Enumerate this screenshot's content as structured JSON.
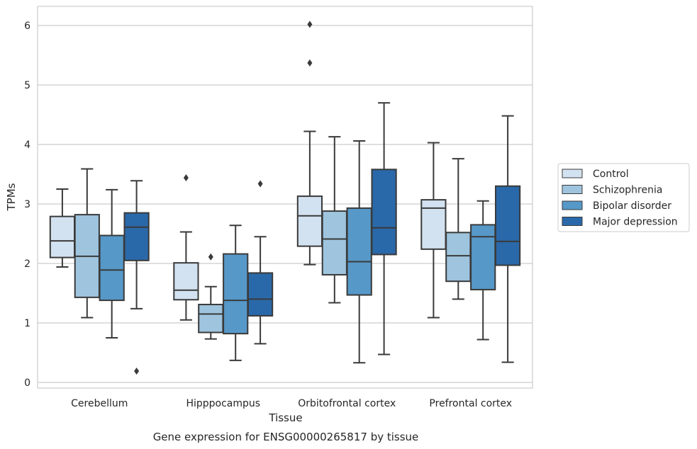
{
  "caption": "Gene expression for ENSG00000265817 by tissue",
  "chart_data": {
    "type": "box",
    "xlabel": "Tissue",
    "ylabel": "TPMs",
    "ylim": [
      -0.1,
      6.3
    ],
    "yticks": [
      0,
      1,
      2,
      3,
      4,
      5,
      6
    ],
    "grid": "horizontal",
    "legend_position": "right",
    "categories": [
      "Cerebellum",
      "Hipppocampus",
      "Orbitofrontal cortex",
      "Prefrontal cortex"
    ],
    "series": [
      {
        "name": "Control",
        "color": "#d3e2f0",
        "boxes": [
          {
            "whislo": 1.94,
            "q1": 2.1,
            "med": 2.38,
            "q3": 2.79,
            "whishi": 3.25,
            "fliers": []
          },
          {
            "whislo": 1.05,
            "q1": 1.39,
            "med": 1.55,
            "q3": 2.01,
            "whishi": 2.53,
            "fliers": [
              3.44
            ]
          },
          {
            "whislo": 1.98,
            "q1": 2.29,
            "med": 2.8,
            "q3": 3.13,
            "whishi": 4.22,
            "fliers": [
              5.37,
              6.02
            ]
          },
          {
            "whislo": 1.09,
            "q1": 2.24,
            "med": 2.93,
            "q3": 3.07,
            "whishi": 4.03,
            "fliers": []
          }
        ]
      },
      {
        "name": "Schizophrenia",
        "color": "#9fc4de",
        "boxes": [
          {
            "whislo": 1.09,
            "q1": 1.43,
            "med": 2.12,
            "q3": 2.82,
            "whishi": 3.59,
            "fliers": []
          },
          {
            "whislo": 0.73,
            "q1": 0.84,
            "med": 1.15,
            "q3": 1.31,
            "whishi": 1.61,
            "fliers": [
              2.11
            ]
          },
          {
            "whislo": 1.34,
            "q1": 1.81,
            "med": 2.41,
            "q3": 2.88,
            "whishi": 4.13,
            "fliers": []
          },
          {
            "whislo": 1.4,
            "q1": 1.7,
            "med": 2.13,
            "q3": 2.52,
            "whishi": 3.76,
            "fliers": []
          }
        ]
      },
      {
        "name": "Bipolar disorder",
        "color": "#5698c8",
        "boxes": [
          {
            "whislo": 0.75,
            "q1": 1.38,
            "med": 1.89,
            "q3": 2.47,
            "whishi": 3.24,
            "fliers": []
          },
          {
            "whislo": 0.37,
            "q1": 0.82,
            "med": 1.38,
            "q3": 2.16,
            "whishi": 2.64,
            "fliers": []
          },
          {
            "whislo": 0.33,
            "q1": 1.47,
            "med": 2.03,
            "q3": 2.93,
            "whishi": 4.06,
            "fliers": []
          },
          {
            "whislo": 0.72,
            "q1": 1.56,
            "med": 2.45,
            "q3": 2.65,
            "whishi": 3.05,
            "fliers": []
          }
        ]
      },
      {
        "name": "Major depression",
        "color": "#2a69a9",
        "boxes": [
          {
            "whislo": 1.24,
            "q1": 2.05,
            "med": 2.61,
            "q3": 2.85,
            "whishi": 3.39,
            "fliers": [
              0.19
            ]
          },
          {
            "whislo": 0.65,
            "q1": 1.12,
            "med": 1.4,
            "q3": 1.84,
            "whishi": 2.45,
            "fliers": [
              3.34
            ]
          },
          {
            "whislo": 0.47,
            "q1": 2.15,
            "med": 2.6,
            "q3": 3.58,
            "whishi": 4.7,
            "fliers": []
          },
          {
            "whislo": 0.34,
            "q1": 1.97,
            "med": 2.37,
            "q3": 3.3,
            "whishi": 4.48,
            "fliers": []
          }
        ]
      }
    ]
  }
}
